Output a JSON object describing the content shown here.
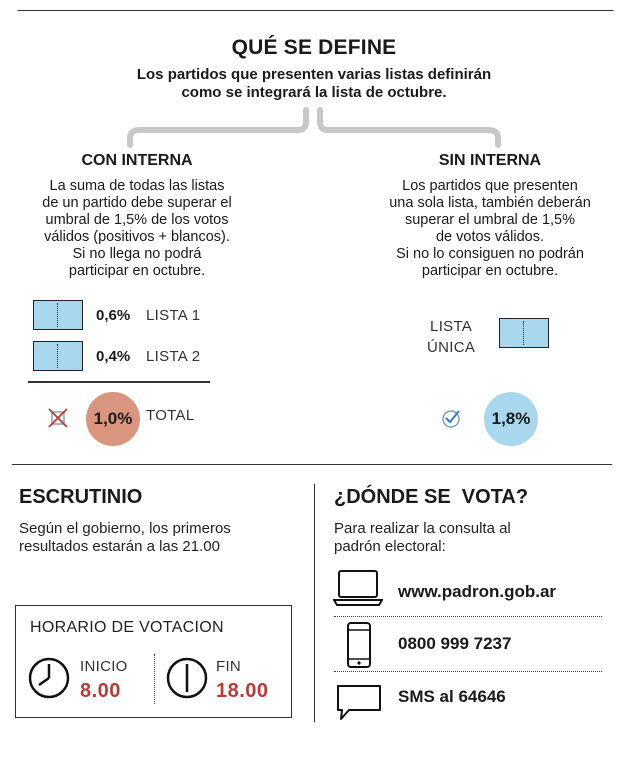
{
  "header": {
    "title": "QUÉ SE DEFINE",
    "subtitle_line1": "Los partidos que presenten varias listas definirán",
    "subtitle_line2": "como se integrará la lista de octubre."
  },
  "con_interna": {
    "title": "CON INTERNA",
    "text_lines": [
      "La suma de todas las listas",
      "de un partido debe superar el",
      "umbral de 1,5% de los votos",
      "válidos (positivos + blancos).",
      "Si no llega no podrá",
      "participar en octubre."
    ],
    "lists": [
      {
        "pct": "0,6%",
        "label": "LISTA 1"
      },
      {
        "pct": "0,4%",
        "label": "LISTA 2"
      }
    ],
    "total_value": "1,0%",
    "total_label": "TOTAL"
  },
  "sin_interna": {
    "title": "SIN INTERNA",
    "text_lines": [
      "Los partidos que presenten",
      "una sola lista, también deberán",
      "superar el umbral de 1,5%",
      "de votos válidos.",
      "Si no lo consiguen no podrán",
      "participar en octubre."
    ],
    "list_label_line1": "LISTA",
    "list_label_line2": "ÚNICA",
    "total_value": "1,8%"
  },
  "escrutinio": {
    "title": "ESCRUTINIO",
    "text_line1": "Según el gobierno, los primeros",
    "text_line2": "resultados estarán a las 21.00"
  },
  "horario": {
    "title": "HORARIO DE VOTACION",
    "start_label": "INICIO",
    "start_time": "8.00",
    "end_label": "FIN",
    "end_time": "18.00"
  },
  "donde": {
    "title": "¿DÓNDE SE  VOTA?",
    "text_line1": "Para realizar la consulta al",
    "text_line2": "padrón electoral:",
    "items": [
      {
        "icon": "laptop-icon",
        "text": "www.padron.gob.ar"
      },
      {
        "icon": "phone-icon",
        "text": "0800 999 7237"
      },
      {
        "icon": "chat-bubble-icon",
        "text": "SMS al 64646"
      }
    ]
  },
  "colors": {
    "ballot": "#a8d7ee",
    "fail_circle": "#d9957d",
    "pass_circle": "#a8d7ee",
    "time_red": "#b83a3a"
  }
}
